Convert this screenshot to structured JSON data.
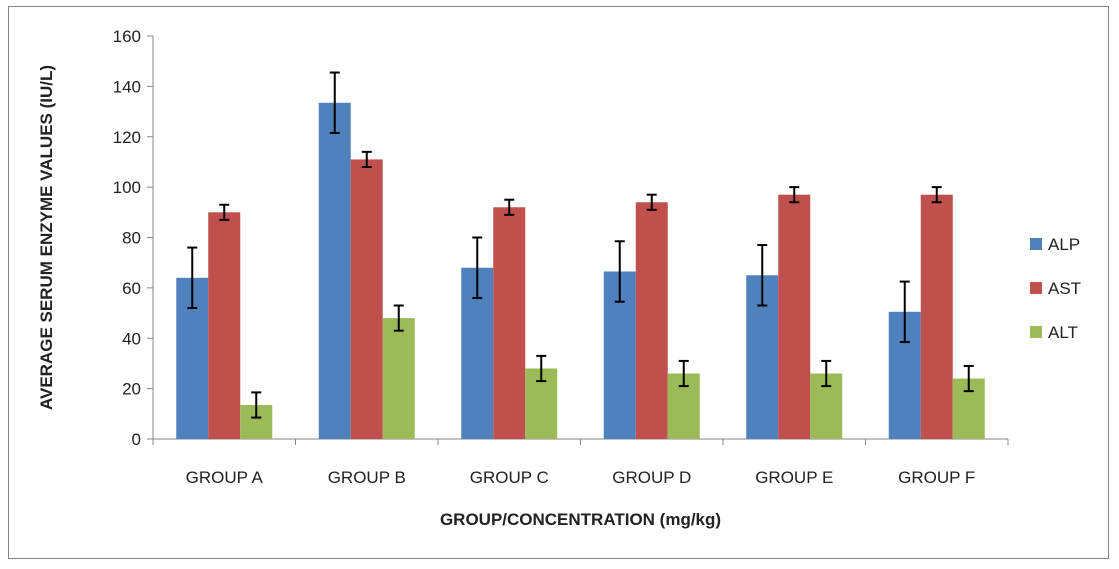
{
  "chart_data": {
    "type": "bar",
    "categories": [
      "GROUP A",
      "GROUP B",
      "GROUP C",
      "GROUP D",
      "GROUP E",
      "GROUP F"
    ],
    "series": [
      {
        "name": "ALP",
        "color": "#4f81bd",
        "values": [
          64,
          133.5,
          68,
          66.5,
          65,
          50.5
        ],
        "errors": [
          12,
          12,
          12,
          12,
          12,
          12
        ]
      },
      {
        "name": "AST",
        "color": "#c0504d",
        "values": [
          90,
          111,
          92,
          94,
          97,
          97
        ],
        "errors": [
          3,
          3,
          3,
          3,
          3,
          3
        ]
      },
      {
        "name": "ALT",
        "color": "#9bbb59",
        "values": [
          13.5,
          48,
          28,
          26,
          26,
          24
        ],
        "errors": [
          5,
          5,
          5,
          5,
          5,
          5
        ]
      }
    ],
    "ylim": [
      0,
      160
    ],
    "yticks": [
      "0",
      "20",
      "40",
      "60",
      "80",
      "100",
      "120",
      "140",
      "160"
    ],
    "xlabel": "GROUP/CONCENTRATION (mg/kg)",
    "ylabel": "AVERAGE SERUM ENZYME VALUES (IU/L)",
    "grid": false,
    "legend_position": "right",
    "error_bars": true
  }
}
